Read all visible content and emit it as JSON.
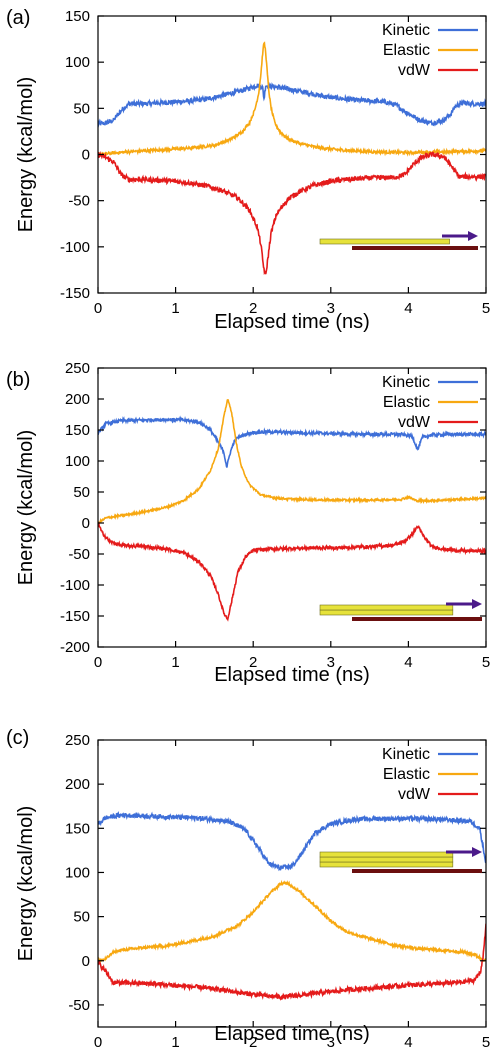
{
  "chart_data": [
    {
      "type": "line",
      "panel_label": "(a)",
      "xlabel": "Elapsed time (ns)",
      "ylabel": "Energy (kcal/mol)",
      "xlim": [
        0,
        5
      ],
      "ylim": [
        -150,
        150
      ],
      "xticks": [
        0,
        1,
        2,
        3,
        4,
        5
      ],
      "yticks": [
        -150,
        -100,
        -50,
        0,
        50,
        100,
        150
      ],
      "legend_position": "top-right",
      "series": [
        {
          "name": "Kinetic",
          "color": "#3e6fd8",
          "x": [
            0,
            0.1,
            0.2,
            0.3,
            0.4,
            0.6,
            0.8,
            1.0,
            1.2,
            1.4,
            1.6,
            1.8,
            1.95,
            2.05,
            2.12,
            2.14,
            2.16,
            2.2,
            2.3,
            2.5,
            2.7,
            2.9,
            3.1,
            3.3,
            3.5,
            3.7,
            3.85,
            3.95,
            4.05,
            4.15,
            4.3,
            4.45,
            4.55,
            4.6,
            4.7,
            4.8,
            5.0
          ],
          "y": [
            33,
            34,
            37,
            48,
            55,
            55,
            56,
            57,
            58,
            60,
            64,
            68,
            72,
            75,
            73,
            60,
            75,
            74,
            73,
            70,
            67,
            63,
            61,
            59,
            58,
            57,
            53,
            47,
            42,
            37,
            34,
            37,
            44,
            52,
            56,
            55,
            55
          ]
        },
        {
          "name": "Elastic",
          "color": "#f7a811",
          "x": [
            0,
            0.4,
            0.8,
            1.2,
            1.5,
            1.7,
            1.85,
            1.95,
            2.02,
            2.07,
            2.1,
            2.12,
            2.14,
            2.16,
            2.18,
            2.2,
            2.23,
            2.28,
            2.35,
            2.45,
            2.6,
            2.8,
            3.1,
            3.5,
            4.0,
            4.5,
            5.0
          ],
          "y": [
            0,
            3,
            5,
            7,
            10,
            16,
            24,
            34,
            48,
            66,
            88,
            108,
            122,
            112,
            90,
            70,
            50,
            34,
            24,
            17,
            12,
            8,
            5,
            3,
            2,
            3,
            4
          ]
        },
        {
          "name": "vdW",
          "color": "#e41b1b",
          "x": [
            0,
            0.1,
            0.2,
            0.3,
            0.4,
            0.6,
            0.8,
            1.0,
            1.2,
            1.4,
            1.6,
            1.8,
            1.95,
            2.05,
            2.1,
            2.13,
            2.16,
            2.19,
            2.23,
            2.3,
            2.45,
            2.6,
            2.8,
            3.0,
            3.2,
            3.4,
            3.6,
            3.8,
            3.95,
            4.05,
            4.15,
            4.3,
            4.45,
            4.55,
            4.65,
            4.8,
            5.0
          ],
          "y": [
            0,
            -3,
            -8,
            -22,
            -27,
            -27,
            -28,
            -29,
            -31,
            -34,
            -39,
            -47,
            -60,
            -78,
            -98,
            -120,
            -132,
            -112,
            -85,
            -65,
            -48,
            -40,
            -33,
            -29,
            -27,
            -26,
            -25,
            -25,
            -22,
            -12,
            -4,
            0,
            -2,
            -12,
            -24,
            -24,
            -24
          ]
        }
      ]
    },
    {
      "type": "line",
      "panel_label": "(b)",
      "xlabel": "Elapsed time (ns)",
      "ylabel": "Energy (kcal/mol)",
      "xlim": [
        0,
        5
      ],
      "ylim": [
        -200,
        250
      ],
      "xticks": [
        0,
        1,
        2,
        3,
        4,
        5
      ],
      "yticks": [
        -200,
        -150,
        -100,
        -50,
        0,
        50,
        100,
        150,
        200,
        250
      ],
      "legend_position": "top-right",
      "series": [
        {
          "name": "Kinetic",
          "color": "#3e6fd8",
          "x": [
            0,
            0.1,
            0.3,
            0.6,
            0.9,
            1.1,
            1.3,
            1.45,
            1.55,
            1.62,
            1.66,
            1.7,
            1.75,
            1.8,
            1.9,
            2.0,
            2.2,
            2.5,
            2.8,
            3.1,
            3.5,
            3.9,
            4.05,
            4.12,
            4.18,
            4.3,
            4.5,
            5.0
          ],
          "y": [
            145,
            160,
            165,
            166,
            167,
            166,
            163,
            150,
            130,
            115,
            90,
            112,
            130,
            138,
            143,
            146,
            147,
            146,
            145,
            144,
            143,
            143,
            140,
            118,
            138,
            142,
            143,
            143
          ]
        },
        {
          "name": "Elastic",
          "color": "#f7a811",
          "x": [
            0,
            0.1,
            0.3,
            0.6,
            0.9,
            1.1,
            1.3,
            1.45,
            1.55,
            1.62,
            1.67,
            1.72,
            1.78,
            1.85,
            1.95,
            2.1,
            2.3,
            2.6,
            3.0,
            3.5,
            3.9,
            4.0,
            4.1,
            4.3,
            4.6,
            5.0
          ],
          "y": [
            0,
            8,
            12,
            18,
            26,
            36,
            55,
            85,
            120,
            170,
            200,
            180,
            130,
            90,
            62,
            45,
            40,
            38,
            37,
            37,
            38,
            42,
            36,
            36,
            38,
            40
          ]
        },
        {
          "name": "vdW",
          "color": "#e41b1b",
          "x": [
            0,
            0.05,
            0.15,
            0.3,
            0.6,
            0.9,
            1.1,
            1.3,
            1.45,
            1.55,
            1.62,
            1.67,
            1.72,
            1.8,
            1.9,
            2.0,
            2.2,
            2.5,
            2.8,
            3.1,
            3.5,
            3.8,
            3.95,
            4.05,
            4.12,
            4.2,
            4.3,
            4.5,
            4.7,
            5.0
          ],
          "y": [
            0,
            -15,
            -30,
            -36,
            -38,
            -42,
            -48,
            -62,
            -85,
            -115,
            -145,
            -155,
            -128,
            -80,
            -55,
            -44,
            -42,
            -41,
            -40,
            -40,
            -38,
            -36,
            -30,
            -18,
            -5,
            -22,
            -38,
            -43,
            -45,
            -45
          ]
        }
      ]
    },
    {
      "type": "line",
      "panel_label": "(c)",
      "xlabel": "Elapsed time (ns)",
      "ylabel": "Energy (kcal/mol)",
      "xlim": [
        0,
        5
      ],
      "ylim": [
        -75,
        250
      ],
      "xticks": [
        0,
        1,
        2,
        3,
        4,
        5
      ],
      "yticks": [
        -50,
        0,
        50,
        100,
        150,
        200,
        250
      ],
      "legend_position": "top-right",
      "series": [
        {
          "name": "Kinetic",
          "color": "#3e6fd8",
          "x": [
            0,
            0.1,
            0.3,
            0.6,
            0.9,
            1.2,
            1.5,
            1.7,
            1.9,
            2.05,
            2.2,
            2.35,
            2.5,
            2.6,
            2.7,
            2.8,
            3.0,
            3.3,
            3.6,
            4.0,
            4.4,
            4.8,
            4.92,
            4.96,
            5.0
          ],
          "y": [
            155,
            162,
            165,
            164,
            163,
            162,
            160,
            157,
            148,
            130,
            110,
            105,
            107,
            118,
            132,
            145,
            155,
            160,
            161,
            161,
            160,
            158,
            150,
            130,
            110
          ]
        },
        {
          "name": "Elastic",
          "color": "#f7a811",
          "x": [
            0,
            0.1,
            0.2,
            0.3,
            0.6,
            0.9,
            1.2,
            1.5,
            1.8,
            2.0,
            2.2,
            2.35,
            2.45,
            2.6,
            2.8,
            3.0,
            3.2,
            3.5,
            3.8,
            4.1,
            4.4,
            4.7,
            4.85,
            4.95,
            5.0
          ],
          "y": [
            0,
            2,
            10,
            12,
            15,
            17,
            22,
            28,
            40,
            55,
            75,
            87,
            88,
            78,
            62,
            45,
            33,
            25,
            18,
            14,
            12,
            10,
            7,
            2,
            0
          ]
        },
        {
          "name": "vdW",
          "color": "#e41b1b",
          "x": [
            0,
            0.1,
            0.2,
            0.4,
            0.7,
            1.0,
            1.3,
            1.6,
            1.9,
            2.2,
            2.4,
            2.6,
            2.9,
            3.2,
            3.5,
            3.8,
            4.1,
            4.4,
            4.7,
            4.85,
            4.93,
            4.97,
            5.0
          ],
          "y": [
            -2,
            -12,
            -25,
            -25,
            -26,
            -28,
            -30,
            -33,
            -37,
            -40,
            -41,
            -39,
            -36,
            -33,
            -31,
            -29,
            -27,
            -26,
            -24,
            -22,
            -12,
            10,
            40
          ]
        }
      ]
    }
  ]
}
